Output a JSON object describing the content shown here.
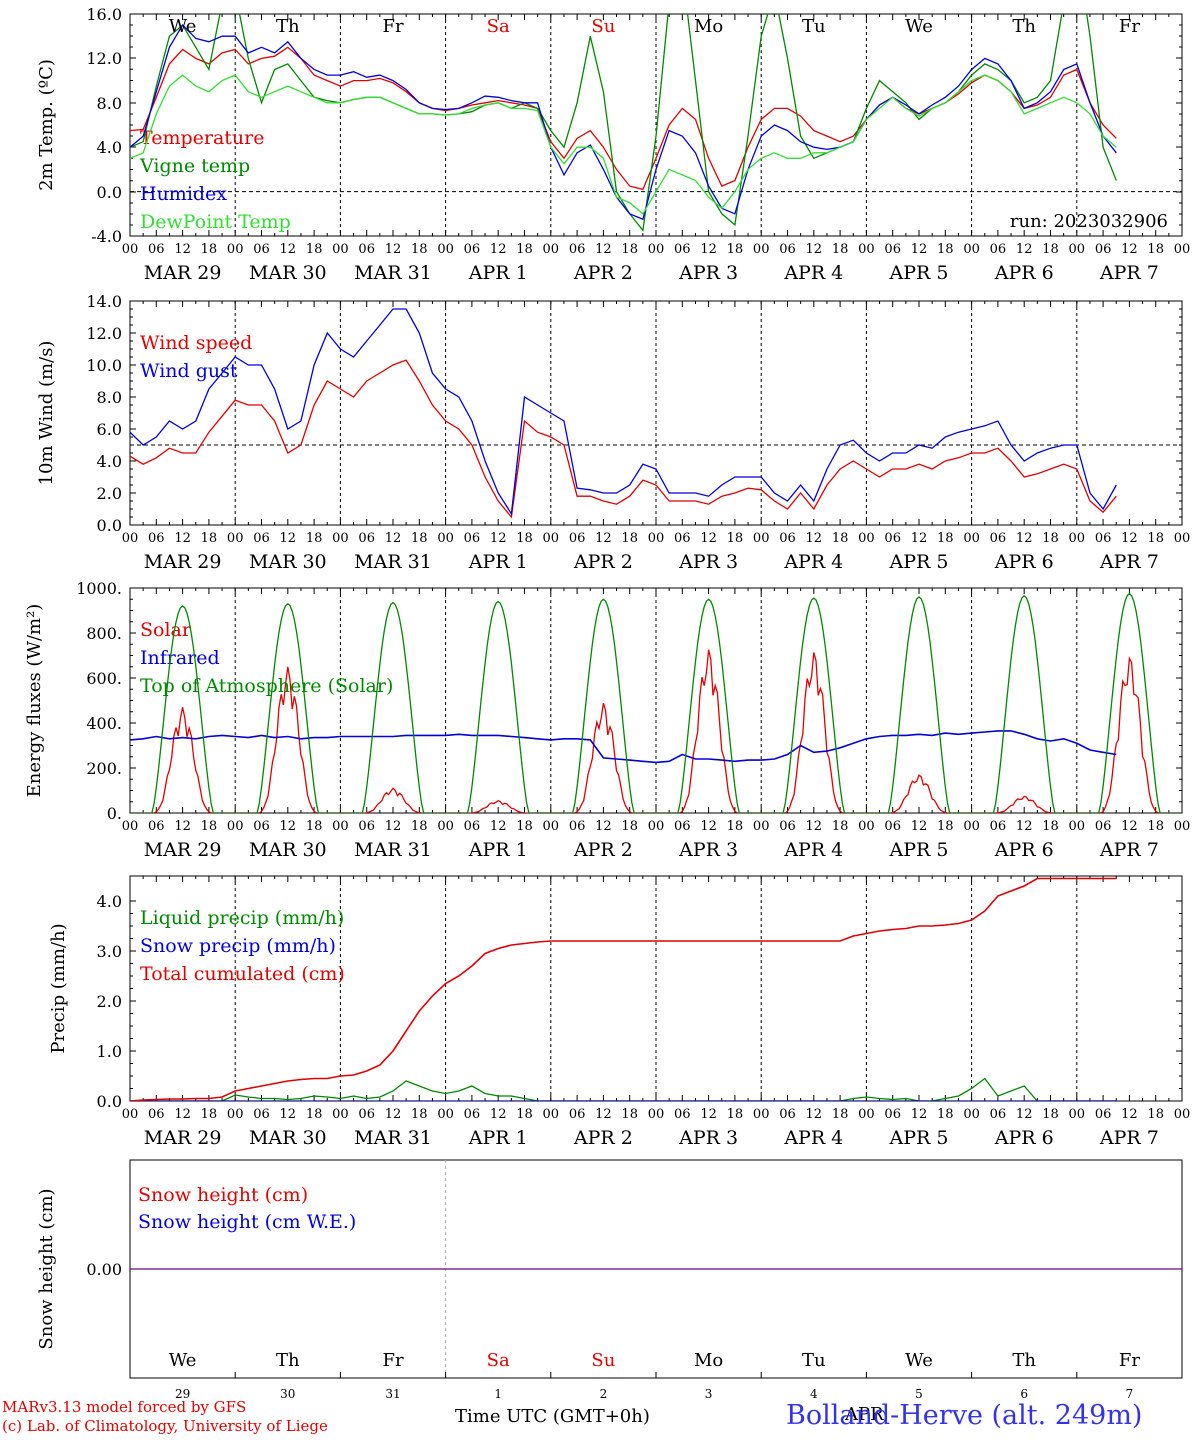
{
  "days": [
    "MAR 29",
    "MAR 30",
    "MAR 31",
    "APR  1",
    "APR  2",
    "APR  3",
    "APR  4",
    "APR  5",
    "APR  6",
    "APR  7"
  ],
  "weekdays": [
    {
      "label": "We",
      "color": "#000000"
    },
    {
      "label": "Th",
      "color": "#000000"
    },
    {
      "label": "Fr",
      "color": "#000000"
    },
    {
      "label": "Sa",
      "color": "#e00000"
    },
    {
      "label": "Su",
      "color": "#e00000"
    },
    {
      "label": "Mo",
      "color": "#000000"
    },
    {
      "label": "Tu",
      "color": "#000000"
    },
    {
      "label": "We",
      "color": "#000000"
    },
    {
      "label": "Th",
      "color": "#000000"
    },
    {
      "label": "Fr",
      "color": "#000000"
    }
  ],
  "hour_ticks": [
    "00",
    "06",
    "12",
    "18"
  ],
  "day_numbers": [
    "29",
    "30",
    "31",
    "1",
    "2",
    "3",
    "4",
    "5",
    "6",
    "7"
  ],
  "footer": {
    "model": "MARv3.13 model forced by GFS",
    "credit": "(c) Lab. of Climatology, University of Liege",
    "axis_title": "Time UTC (GMT+0h)",
    "station": "Bolland-Herve (alt. 249m)",
    "month_label": "APR"
  },
  "colors": {
    "red": "#e00000",
    "green": "#008800",
    "blue": "#0000dd",
    "lightgreen": "#33dd33",
    "purple": "#7a2a8a"
  },
  "chart_data": [
    {
      "type": "line",
      "ylabel": "2m Temp. (ºC)",
      "ylim": [
        -4,
        16
      ],
      "yticks": [
        "16.0",
        "12.0",
        "8.0",
        "4.0",
        "0.0",
        "-4.0"
      ],
      "ref_line": 0,
      "run_label": "run: 2023032906",
      "x_unit": "hours since 2023-03-29 00 UTC (3-hourly)",
      "series": [
        {
          "name": "Temperature",
          "color": "red",
          "values": [
            5.5,
            5.6,
            8.5,
            11.5,
            12.8,
            12.0,
            11.5,
            12.5,
            12.8,
            11.5,
            12.0,
            12.2,
            13.0,
            12.0,
            10.5,
            10.0,
            9.5,
            10.0,
            10.0,
            10.2,
            9.8,
            9.0,
            8.0,
            7.5,
            7.3,
            7.5,
            7.8,
            8.0,
            8.2,
            8.0,
            7.8,
            7.5,
            4.5,
            3.0,
            4.8,
            5.5,
            4.0,
            2.0,
            0.5,
            0.2,
            3.0,
            6.0,
            7.5,
            6.5,
            3.0,
            0.5,
            1.0,
            4.0,
            6.5,
            7.5,
            7.5,
            6.8,
            5.5,
            5.0,
            4.5,
            5.0,
            6.5,
            7.8,
            8.5,
            7.5,
            7.0,
            7.5,
            8.0,
            8.8,
            9.8,
            10.5,
            10.0,
            9.0,
            7.5,
            7.8,
            8.5,
            10.5,
            11.0,
            8.0,
            6.0,
            4.8
          ]
        },
        {
          "name": "Vigne temp",
          "color": "green",
          "values": [
            4.0,
            4.5,
            9.5,
            14.0,
            15.0,
            13.0,
            11.0,
            17.0,
            18.0,
            12.0,
            8.0,
            11.0,
            11.5,
            10.0,
            8.5,
            8.2,
            8.0,
            8.3,
            8.5,
            8.5,
            8.0,
            7.5,
            7.0,
            7.0,
            6.9,
            7.0,
            7.2,
            7.8,
            8.0,
            7.5,
            8.0,
            7.5,
            5.5,
            4.0,
            8.0,
            14.0,
            9.0,
            0.0,
            -2.0,
            -3.5,
            5.0,
            17.0,
            20.0,
            10.0,
            0.0,
            -2.0,
            -3.0,
            5.0,
            14.0,
            18.0,
            12.0,
            5.0,
            3.0,
            3.5,
            4.0,
            4.5,
            7.5,
            10.0,
            9.0,
            8.0,
            6.5,
            7.5,
            8.0,
            9.0,
            10.5,
            11.5,
            11.0,
            10.0,
            8.0,
            8.5,
            10.0,
            17.0,
            22.0,
            14.0,
            4.0,
            1.0
          ]
        },
        {
          "name": "Humidex",
          "color": "blue",
          "values": [
            4.0,
            5.0,
            9.0,
            13.0,
            15.0,
            13.8,
            13.5,
            14.0,
            14.0,
            12.5,
            13.0,
            12.5,
            13.5,
            12.0,
            11.0,
            10.5,
            10.5,
            10.8,
            10.3,
            10.5,
            10.0,
            9.2,
            8.0,
            7.5,
            7.4,
            7.5,
            8.0,
            8.6,
            8.5,
            8.2,
            8.0,
            8.0,
            4.0,
            1.5,
            3.5,
            4.2,
            2.0,
            -0.5,
            -2.0,
            -2.5,
            2.0,
            5.5,
            5.0,
            3.5,
            0.5,
            -1.5,
            -2.0,
            2.0,
            5.0,
            6.0,
            5.5,
            4.5,
            4.0,
            3.8,
            4.0,
            4.5,
            6.5,
            7.8,
            8.5,
            7.8,
            7.0,
            7.8,
            8.5,
            9.5,
            11.0,
            12.0,
            11.5,
            10.0,
            7.5,
            8.0,
            9.0,
            11.0,
            11.5,
            8.0,
            5.0,
            3.5
          ]
        },
        {
          "name": "DewPoint Temp",
          "color": "lightgreen",
          "values": [
            3.0,
            3.5,
            7.0,
            9.5,
            10.5,
            9.5,
            9.0,
            10.0,
            10.5,
            9.0,
            8.5,
            9.0,
            9.5,
            9.0,
            8.5,
            8.0,
            8.0,
            8.3,
            8.5,
            8.5,
            8.0,
            7.5,
            7.0,
            7.0,
            6.9,
            7.0,
            7.5,
            7.8,
            8.0,
            7.5,
            7.5,
            7.3,
            4.0,
            2.5,
            4.0,
            4.0,
            3.0,
            -0.5,
            -1.0,
            -2.0,
            0.0,
            2.0,
            1.5,
            1.0,
            -0.5,
            -1.5,
            0.0,
            2.0,
            3.0,
            3.5,
            3.0,
            3.0,
            3.5,
            3.5,
            4.0,
            4.5,
            6.5,
            7.5,
            8.5,
            7.5,
            6.8,
            7.5,
            8.0,
            9.0,
            10.0,
            10.5,
            10.0,
            9.0,
            7.0,
            7.5,
            8.0,
            8.5,
            8.0,
            7.0,
            5.0,
            4.0
          ]
        }
      ]
    },
    {
      "type": "line",
      "ylabel": "10m Wind (m/s)",
      "ylim": [
        0,
        14
      ],
      "yticks": [
        "14.0",
        "12.0",
        "10.0",
        "8.0",
        "6.0",
        "4.0",
        "2.0",
        "0.0"
      ],
      "ref_line": 5,
      "series": [
        {
          "name": "Wind speed",
          "color": "red",
          "values": [
            4.3,
            3.8,
            4.2,
            4.8,
            4.5,
            4.5,
            5.8,
            6.8,
            7.8,
            7.5,
            7.5,
            6.5,
            4.5,
            5.0,
            7.5,
            9.0,
            8.5,
            8.0,
            9.0,
            9.5,
            10.0,
            10.3,
            9.0,
            7.5,
            6.5,
            6.0,
            5.0,
            3.0,
            1.5,
            0.5,
            6.5,
            5.8,
            5.5,
            5.0,
            1.8,
            1.8,
            1.5,
            1.3,
            1.8,
            2.8,
            2.5,
            1.5,
            1.5,
            1.5,
            1.3,
            1.8,
            2.0,
            2.3,
            2.2,
            1.5,
            1.0,
            2.0,
            1.0,
            2.5,
            3.5,
            4.0,
            3.5,
            3.0,
            3.5,
            3.5,
            3.8,
            3.5,
            4.0,
            4.2,
            4.5,
            4.5,
            4.8,
            4.0,
            3.0,
            3.2,
            3.5,
            3.8,
            3.5,
            1.5,
            0.8,
            1.8
          ]
        },
        {
          "name": "Wind gust",
          "color": "blue",
          "values": [
            5.8,
            5.0,
            5.5,
            6.5,
            6.0,
            6.5,
            8.5,
            9.5,
            10.5,
            10.0,
            10.0,
            8.5,
            6.0,
            6.5,
            10.0,
            12.0,
            11.0,
            10.5,
            11.5,
            12.5,
            13.5,
            13.5,
            12.0,
            9.5,
            8.5,
            8.0,
            6.5,
            4.0,
            2.0,
            0.7,
            8.0,
            7.5,
            7.0,
            6.5,
            2.3,
            2.2,
            2.0,
            2.0,
            2.5,
            3.8,
            3.5,
            2.0,
            2.0,
            2.0,
            1.8,
            2.5,
            3.0,
            3.0,
            3.0,
            2.0,
            1.5,
            2.5,
            1.5,
            3.5,
            5.0,
            5.3,
            4.5,
            4.0,
            4.5,
            4.5,
            5.0,
            4.8,
            5.5,
            5.8,
            6.0,
            6.2,
            6.5,
            5.0,
            4.0,
            4.5,
            4.8,
            5.0,
            5.0,
            2.0,
            1.0,
            2.5
          ]
        }
      ]
    },
    {
      "type": "line",
      "ylabel": "Energy fluxes (W/m²)",
      "ylim": [
        0,
        1000
      ],
      "yticks": [
        "1000.",
        "800.",
        "600.",
        "400.",
        "200.",
        "0."
      ],
      "series": [
        {
          "name": "Solar",
          "color": "red",
          "peaks": [
            470,
            650,
            110,
            55,
            490,
            730,
            720,
            170,
            75,
            700
          ]
        },
        {
          "name": "Infrared",
          "color": "blue",
          "values": [
            325,
            330,
            340,
            330,
            335,
            330,
            340,
            345,
            340,
            335,
            345,
            335,
            340,
            330,
            335,
            335,
            340,
            340,
            340,
            340,
            340,
            345,
            345,
            345,
            345,
            350,
            345,
            345,
            345,
            340,
            335,
            330,
            325,
            330,
            330,
            325,
            245,
            240,
            235,
            230,
            225,
            230,
            260,
            240,
            240,
            235,
            230,
            235,
            235,
            240,
            260,
            300,
            270,
            275,
            290,
            310,
            330,
            340,
            345,
            345,
            350,
            345,
            355,
            350,
            355,
            360,
            365,
            365,
            350,
            330,
            320,
            330,
            310,
            280,
            270,
            260
          ]
        },
        {
          "name": "Top of Atmosphere (Solar)",
          "color": "green",
          "peaks": [
            920,
            930,
            935,
            940,
            950,
            950,
            955,
            960,
            965,
            975
          ]
        }
      ]
    },
    {
      "type": "line",
      "ylabel": "Precip (mm/h)",
      "ylim": [
        0,
        4.5
      ],
      "yticks": [
        "4.0",
        "3.0",
        "2.0",
        "1.0",
        "0.0"
      ],
      "series": [
        {
          "name": "Liquid precip (mm/h)",
          "color": "green",
          "values": [
            0,
            0,
            0,
            0,
            0,
            0,
            0,
            0,
            0.12,
            0.08,
            0.05,
            0.05,
            0.03,
            0.05,
            0.1,
            0.08,
            0.05,
            0.1,
            0.05,
            0.08,
            0.2,
            0.4,
            0.3,
            0.2,
            0.15,
            0.2,
            0.3,
            0.15,
            0.1,
            0.1,
            0.05,
            0,
            0,
            0,
            0,
            0,
            0,
            0,
            0,
            0,
            0,
            0,
            0,
            0,
            0,
            0,
            0,
            0,
            0,
            0,
            0,
            0,
            0,
            0,
            0,
            0.05,
            0.08,
            0.05,
            0.03,
            0.05,
            0,
            0,
            0.05,
            0.1,
            0.25,
            0.45,
            0.1,
            0.2,
            0.3,
            0,
            0,
            0,
            0,
            0,
            0,
            0
          ]
        },
        {
          "name": "Snow precip (mm/h)",
          "color": "blue",
          "values": [
            0,
            0,
            0,
            0,
            0,
            0,
            0,
            0,
            0,
            0,
            0,
            0,
            0,
            0,
            0,
            0,
            0,
            0,
            0,
            0,
            0,
            0,
            0,
            0,
            0,
            0,
            0,
            0,
            0,
            0,
            0,
            0,
            0,
            0,
            0,
            0,
            0,
            0,
            0,
            0,
            0,
            0,
            0,
            0,
            0,
            0,
            0,
            0,
            0,
            0,
            0,
            0,
            0,
            0,
            0,
            0,
            0,
            0,
            0,
            0,
            0,
            0,
            0,
            0,
            0,
            0,
            0,
            0,
            0,
            0,
            0,
            0,
            0,
            0,
            0,
            0
          ]
        },
        {
          "name": "Total cumulated (cm)",
          "color": "red",
          "values": [
            0.0,
            0.02,
            0.03,
            0.04,
            0.04,
            0.05,
            0.05,
            0.08,
            0.2,
            0.25,
            0.3,
            0.35,
            0.4,
            0.43,
            0.45,
            0.45,
            0.5,
            0.52,
            0.6,
            0.72,
            1.0,
            1.4,
            1.8,
            2.1,
            2.35,
            2.5,
            2.7,
            2.95,
            3.05,
            3.12,
            3.15,
            3.18,
            3.2,
            3.2,
            3.2,
            3.2,
            3.2,
            3.2,
            3.2,
            3.2,
            3.2,
            3.2,
            3.2,
            3.2,
            3.2,
            3.2,
            3.2,
            3.2,
            3.2,
            3.2,
            3.2,
            3.2,
            3.2,
            3.2,
            3.2,
            3.3,
            3.35,
            3.4,
            3.43,
            3.45,
            3.5,
            3.5,
            3.52,
            3.55,
            3.62,
            3.8,
            4.1,
            4.2,
            4.3,
            4.45,
            4.45,
            4.45,
            4.45,
            4.45,
            4.45,
            4.45
          ]
        }
      ]
    },
    {
      "type": "line",
      "ylabel": "Snow height (cm)",
      "yticks": [
        "0.00"
      ],
      "series": [
        {
          "name": "Snow height (cm)",
          "color": "red",
          "values": [
            0,
            0
          ]
        },
        {
          "name": "Snow height (cm W.E.)",
          "color": "blue",
          "values": [
            0,
            0
          ]
        }
      ]
    }
  ]
}
